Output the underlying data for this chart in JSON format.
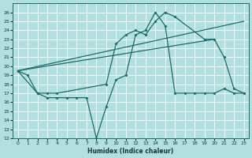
{
  "xlabel": "Humidex (Indice chaleur)",
  "bg_color": "#b2e0e0",
  "line_color": "#1a6b6b",
  "grid_color": "#ffffff",
  "xlim": [
    -0.5,
    23.5
  ],
  "ylim": [
    12,
    27
  ],
  "yticks": [
    12,
    13,
    14,
    15,
    16,
    17,
    18,
    19,
    20,
    21,
    22,
    23,
    24,
    25,
    26
  ],
  "xticks": [
    0,
    1,
    2,
    3,
    4,
    5,
    6,
    7,
    8,
    9,
    10,
    11,
    12,
    13,
    14,
    15,
    16,
    17,
    18,
    19,
    20,
    21,
    22,
    23
  ],
  "line1_x": [
    0,
    1,
    2,
    3,
    4,
    5,
    6,
    7,
    8,
    9,
    10,
    11,
    12,
    13,
    14,
    15,
    16,
    17,
    18,
    19,
    20,
    21,
    22,
    23
  ],
  "line1_y": [
    19.5,
    19.0,
    17.0,
    16.5,
    16.5,
    16.5,
    16.5,
    16.5,
    12.0,
    15.5,
    18.5,
    19.0,
    23.5,
    24.0,
    26.0,
    24.5,
    17.0,
    17.0,
    17.0,
    17.0,
    17.0,
    17.5,
    17.0,
    17.0
  ],
  "line2_x": [
    0,
    2,
    3,
    4,
    9,
    10,
    11,
    12,
    13,
    14,
    15,
    16,
    19,
    20,
    21,
    22,
    23
  ],
  "line2_y": [
    19.5,
    17.0,
    17.0,
    17.0,
    18.0,
    22.5,
    23.5,
    24.0,
    23.5,
    25.0,
    26.0,
    25.5,
    23.0,
    23.0,
    21.0,
    17.5,
    17.0
  ],
  "line3_x": [
    0,
    23
  ],
  "line3_y": [
    19.5,
    25.0
  ],
  "line4_x": [
    0,
    20
  ],
  "line4_y": [
    19.5,
    23.0
  ]
}
